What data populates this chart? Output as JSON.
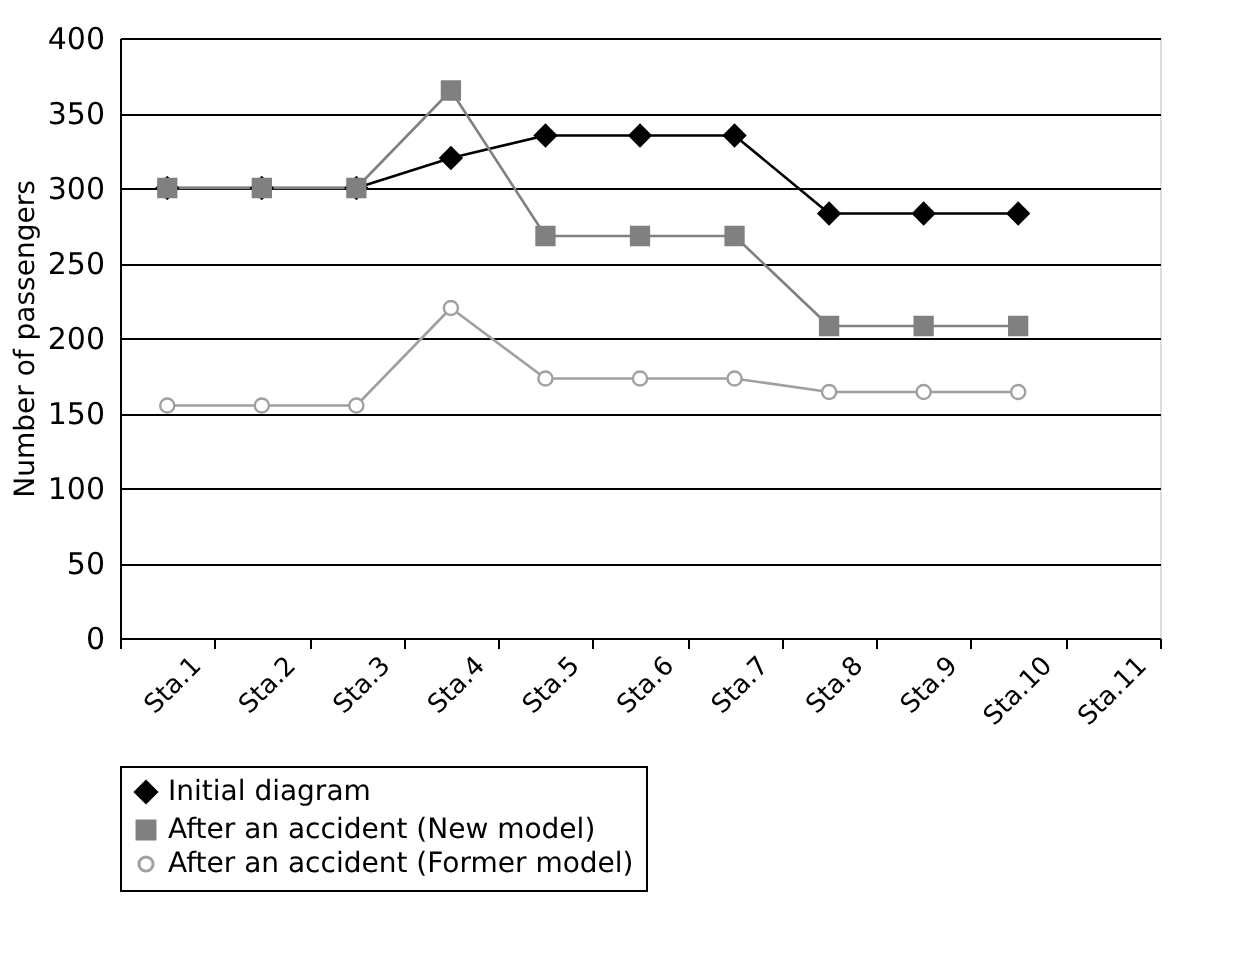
{
  "chart_data": {
    "type": "line",
    "ylabel": "Number of passengers",
    "categories": [
      "Sta.1",
      "Sta.2",
      "Sta.3",
      "Sta.4",
      "Sta.5",
      "Sta.6",
      "Sta.7",
      "Sta.8",
      "Sta.9",
      "Sta.10",
      "Sta.11"
    ],
    "series": [
      {
        "name": "Initial diagram",
        "color": "#000000",
        "marker": "diamond",
        "values": [
          300,
          300,
          300,
          320,
          335,
          335,
          335,
          283,
          283,
          283,
          null
        ]
      },
      {
        "name": "After an accident (New model)",
        "color": "#808080",
        "marker": "square",
        "values": [
          300,
          300,
          300,
          365,
          268,
          268,
          268,
          208,
          208,
          208,
          null
        ]
      },
      {
        "name": "After an accident (Former model)",
        "color": "#a0a0a0",
        "marker": "circle",
        "values": [
          155,
          155,
          155,
          220,
          173,
          173,
          173,
          164,
          164,
          164,
          null
        ]
      }
    ],
    "ylim": [
      0,
      400
    ],
    "yticks": [
      0,
      50,
      100,
      150,
      200,
      250,
      300,
      350,
      400
    ],
    "grid": "y",
    "legend": "bottom",
    "line_style": "solid"
  }
}
